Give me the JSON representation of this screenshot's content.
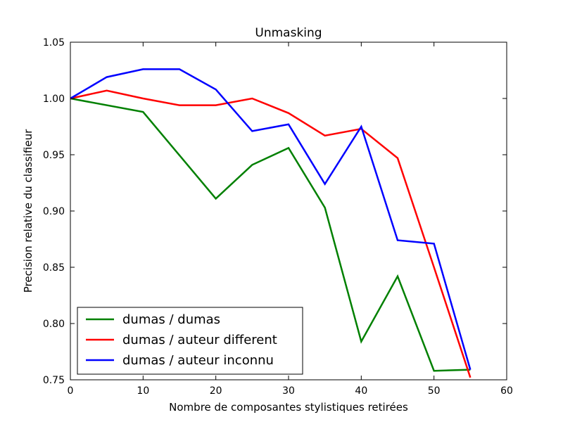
{
  "chart_data": {
    "type": "line",
    "title": "Unmasking",
    "xlabel": "Nombre de composantes stylistiques retirées",
    "ylabel": "Precision relative du classifieur",
    "xlim": [
      0,
      60
    ],
    "ylim": [
      0.75,
      1.05
    ],
    "xticks": [
      0,
      10,
      20,
      30,
      40,
      50,
      60
    ],
    "xtick_labels": [
      "0",
      "10",
      "20",
      "30",
      "40",
      "50",
      "60"
    ],
    "yticks": [
      0.75,
      0.8,
      0.85,
      0.9,
      0.95,
      1.0,
      1.05
    ],
    "ytick_labels": [
      "0.75",
      "0.80",
      "0.85",
      "0.90",
      "0.95",
      "1.00",
      "1.05"
    ],
    "grid": false,
    "legend_position": "bottom-left",
    "series": [
      {
        "name": "dumas / dumas",
        "color": "#008000",
        "x": [
          0,
          10,
          20,
          25,
          30,
          35,
          40,
          45,
          50,
          55
        ],
        "y": [
          1.0,
          0.988,
          0.911,
          0.941,
          0.956,
          0.903,
          0.784,
          0.842,
          0.758,
          0.759
        ]
      },
      {
        "name": "dumas / auteur different",
        "color": "#ff0000",
        "x": [
          0,
          5,
          10,
          15,
          20,
          25,
          30,
          35,
          40,
          45,
          50,
          55
        ],
        "y": [
          1.0,
          1.007,
          1.0,
          0.994,
          0.994,
          1.0,
          0.987,
          0.967,
          0.973,
          0.947,
          0.85,
          0.752
        ]
      },
      {
        "name": "dumas / auteur inconnu",
        "color": "#0000ff",
        "x": [
          0,
          5,
          10,
          15,
          20,
          25,
          30,
          35,
          40,
          45,
          50,
          55
        ],
        "y": [
          1.0,
          1.019,
          1.026,
          1.026,
          1.008,
          0.971,
          0.977,
          0.924,
          0.975,
          0.874,
          0.871,
          0.759
        ]
      }
    ]
  }
}
